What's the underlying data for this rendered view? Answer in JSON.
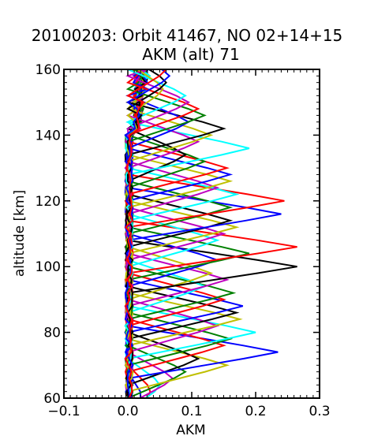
{
  "chart_data": {
    "type": "line",
    "title": "20100203: Orbit 41467, NO 02+14+15",
    "subtitle": "AKM (alt) 71",
    "xlabel": "AKM",
    "ylabel": "altitude [km]",
    "xlim": [
      -0.1,
      0.3
    ],
    "ylim": [
      60,
      160
    ],
    "x_ticks": [
      -0.1,
      0.0,
      0.1,
      0.2,
      0.3
    ],
    "x_tick_labels": [
      "−0.1",
      "0.0",
      "0.1",
      "0.2",
      "0.3"
    ],
    "y_ticks": [
      60,
      80,
      100,
      120,
      140,
      160
    ],
    "y_tick_labels": [
      "60",
      "80",
      "100",
      "120",
      "140",
      "160"
    ],
    "grid": false,
    "legend": "none",
    "curve_model": "each averaging-kernel row is near zero except a triangular peak centred at its nominal altitude (spacing 2 km, peak half-width about 8 km); peak AKM values listed per series",
    "series": [
      {
        "peak_alt": 60,
        "peak_akm": 0.02,
        "color": "#0000ff"
      },
      {
        "peak_alt": 62,
        "peak_akm": 0.035,
        "color": "#ff0000"
      },
      {
        "peak_alt": 64,
        "peak_akm": 0.05,
        "color": "#00ffff"
      },
      {
        "peak_alt": 66,
        "peak_akm": 0.07,
        "color": "#bf00bf"
      },
      {
        "peak_alt": 68,
        "peak_akm": 0.09,
        "color": "#008000"
      },
      {
        "peak_alt": 70,
        "peak_akm": 0.155,
        "color": "#bfbf00"
      },
      {
        "peak_alt": 72,
        "peak_akm": 0.11,
        "color": "#000000"
      },
      {
        "peak_alt": 74,
        "peak_akm": 0.235,
        "color": "#0000ff"
      },
      {
        "peak_alt": 76,
        "peak_akm": 0.15,
        "color": "#ff0000"
      },
      {
        "peak_alt": 78,
        "peak_akm": 0.16,
        "color": "#008000"
      },
      {
        "peak_alt": 80,
        "peak_akm": 0.2,
        "color": "#00ffff"
      },
      {
        "peak_alt": 82,
        "peak_akm": 0.14,
        "color": "#bf00bf"
      },
      {
        "peak_alt": 84,
        "peak_akm": 0.175,
        "color": "#bfbf00"
      },
      {
        "peak_alt": 86,
        "peak_akm": 0.17,
        "color": "#000000"
      },
      {
        "peak_alt": 88,
        "peak_akm": 0.18,
        "color": "#0000ff"
      },
      {
        "peak_alt": 90,
        "peak_akm": 0.15,
        "color": "#ff0000"
      },
      {
        "peak_alt": 92,
        "peak_akm": 0.165,
        "color": "#008000"
      },
      {
        "peak_alt": 94,
        "peak_akm": 0.12,
        "color": "#00ffff"
      },
      {
        "peak_alt": 96,
        "peak_akm": 0.155,
        "color": "#bf00bf"
      },
      {
        "peak_alt": 98,
        "peak_akm": 0.13,
        "color": "#bfbf00"
      },
      {
        "peak_alt": 100,
        "peak_akm": 0.265,
        "color": "#000000"
      },
      {
        "peak_alt": 102,
        "peak_akm": 0.14,
        "color": "#0000ff"
      },
      {
        "peak_alt": 104,
        "peak_akm": 0.19,
        "color": "#008000"
      },
      {
        "peak_alt": 106,
        "peak_akm": 0.265,
        "color": "#ff0000"
      },
      {
        "peak_alt": 108,
        "peak_akm": 0.14,
        "color": "#00ffff"
      },
      {
        "peak_alt": 110,
        "peak_akm": 0.15,
        "color": "#bf00bf"
      },
      {
        "peak_alt": 112,
        "peak_akm": 0.17,
        "color": "#bfbf00"
      },
      {
        "peak_alt": 114,
        "peak_akm": 0.16,
        "color": "#000000"
      },
      {
        "peak_alt": 116,
        "peak_akm": 0.24,
        "color": "#0000ff"
      },
      {
        "peak_alt": 118,
        "peak_akm": 0.16,
        "color": "#008000"
      },
      {
        "peak_alt": 120,
        "peak_akm": 0.245,
        "color": "#ff0000"
      },
      {
        "peak_alt": 122,
        "peak_akm": 0.17,
        "color": "#00ffff"
      },
      {
        "peak_alt": 124,
        "peak_akm": 0.14,
        "color": "#bf00bf"
      },
      {
        "peak_alt": 126,
        "peak_akm": 0.16,
        "color": "#bfbf00"
      },
      {
        "peak_alt": 128,
        "peak_akm": 0.16,
        "color": "#0000ff"
      },
      {
        "peak_alt": 130,
        "peak_akm": 0.155,
        "color": "#ff0000"
      },
      {
        "peak_alt": 132,
        "peak_akm": 0.12,
        "color": "#008000"
      },
      {
        "peak_alt": 134,
        "peak_akm": 0.09,
        "color": "#000000"
      },
      {
        "peak_alt": 136,
        "peak_akm": 0.19,
        "color": "#00ffff"
      },
      {
        "peak_alt": 138,
        "peak_akm": 0.11,
        "color": "#bf00bf"
      },
      {
        "peak_alt": 140,
        "peak_akm": 0.13,
        "color": "#bfbf00"
      },
      {
        "peak_alt": 142,
        "peak_akm": 0.15,
        "color": "#000000"
      },
      {
        "peak_alt": 144,
        "peak_akm": 0.095,
        "color": "#0000ff"
      },
      {
        "peak_alt": 146,
        "peak_akm": 0.12,
        "color": "#008000"
      },
      {
        "peak_alt": 148,
        "peak_akm": 0.11,
        "color": "#ff0000"
      },
      {
        "peak_alt": 150,
        "peak_akm": 0.095,
        "color": "#bf00bf"
      },
      {
        "peak_alt": 152,
        "peak_akm": 0.09,
        "color": "#00ffff"
      },
      {
        "peak_alt": 154,
        "peak_akm": 0.055,
        "color": "#bfbf00"
      },
      {
        "peak_alt": 156,
        "peak_akm": 0.06,
        "color": "#000000"
      },
      {
        "peak_alt": 158,
        "peak_akm": 0.065,
        "color": "#0000ff"
      },
      {
        "peak_alt": 160,
        "peak_akm": 0.06,
        "color": "#ff0000"
      }
    ]
  }
}
